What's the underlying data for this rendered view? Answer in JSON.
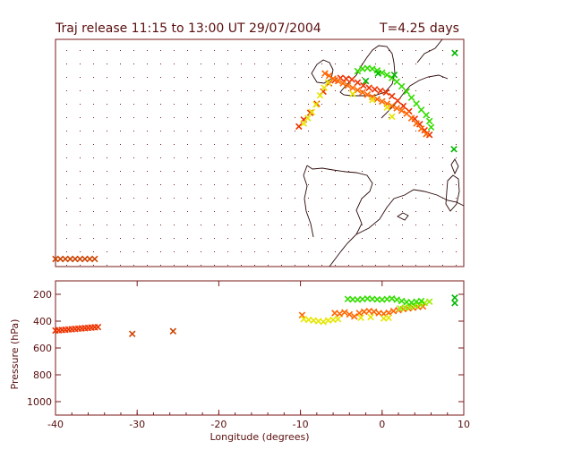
{
  "title": "Traj release 11:15 to 13:00 UT 29/07/2004",
  "duration_label": "T=4.25 days",
  "colors": {
    "frame": "#7a1a1a",
    "coast": "#2a0606",
    "grid": "#7a1a1a",
    "text": "#5a0e0e",
    "marker_palette": [
      "#00b800",
      "#33dd00",
      "#99ee00",
      "#e6e600",
      "#ff9900",
      "#ff6600",
      "#ee3300",
      "#cc4400"
    ]
  },
  "chart_data": [
    {
      "type": "scatter",
      "panel": "map",
      "title": "Traj release 11:15 to 13:00 UT 29/07/2004",
      "xlim": [
        -40,
        10
      ],
      "ylim": [
        30,
        60
      ],
      "grid": true,
      "series": [
        {
          "color": "#cc4400",
          "x": [
            -40,
            -39.4,
            -38.8,
            -38.2,
            -37.6,
            -37,
            -36.4,
            -35.8,
            -35.2
          ],
          "y": [
            31,
            31,
            31,
            31,
            31,
            31,
            31,
            31,
            31
          ]
        },
        {
          "color": "#ee3300",
          "x": [
            -10.2,
            -9.6,
            -8.8,
            -8,
            -7.2,
            -6.5,
            -5.8,
            -5.1,
            -4.4,
            -3.7,
            -3,
            -2.3,
            -1.6,
            -0.9,
            -0.2,
            0.5,
            1.2,
            1.9,
            2.6,
            3.3,
            4,
            4.6,
            5.2,
            5.8
          ],
          "y": [
            48.5,
            49.4,
            50.3,
            51.5,
            53.1,
            54.2,
            54.6,
            54.9,
            54.8,
            54.7,
            54.3,
            53.9,
            53.6,
            53.4,
            53.2,
            53.0,
            52.5,
            51.9,
            51.2,
            50.5,
            49.5,
            48.8,
            48.0,
            47.4
          ]
        },
        {
          "color": "#ff6600",
          "x": [
            -7,
            -6.5,
            -6,
            -5.4,
            -4.8,
            -4.2,
            -3.6,
            -3,
            -2.4,
            -1.8,
            -1.2,
            -0.6,
            0,
            0.6,
            1.2,
            1.8,
            2.4,
            3,
            3.6,
            4.2,
            4.8,
            5.4
          ],
          "y": [
            55.5,
            55.2,
            54.8,
            54.5,
            54.2,
            53.9,
            53.6,
            53.3,
            53.0,
            52.7,
            52.4,
            52.1,
            51.8,
            51.5,
            51.2,
            50.9,
            50.6,
            50.2,
            49.6,
            48.9,
            48.2,
            47.5
          ]
        },
        {
          "color": "#e6e600",
          "x": [
            -9.6,
            -9.1,
            -8.6,
            -8.1,
            -7.6,
            -7.1,
            -6.6,
            -3.6,
            -1.2,
            0.6,
            1.2
          ],
          "y": [
            48.9,
            49.6,
            50.4,
            51.4,
            52.6,
            53.6,
            54.3,
            52.8,
            52.0,
            51.0,
            49.8
          ]
        },
        {
          "color": "#33dd00",
          "x": [
            -3,
            -2.4,
            -1.8,
            -1.2,
            -0.6,
            0,
            0.6,
            1.2,
            1.8,
            2.4,
            3,
            3.6,
            4.2,
            4.8,
            5.4,
            5.8,
            6
          ],
          "y": [
            55.8,
            56.1,
            56.2,
            56.1,
            55.9,
            55.6,
            55.3,
            54.9,
            54.4,
            53.8,
            53.1,
            52.3,
            51.5,
            50.7,
            50.0,
            49.2,
            48.4
          ]
        },
        {
          "color": "#00b800",
          "x": [
            8.9,
            8.8,
            1.5,
            -0.5,
            -2
          ],
          "y": [
            58.2,
            45.5,
            55.3,
            55.5,
            54.5
          ]
        }
      ]
    },
    {
      "type": "scatter",
      "panel": "pressure",
      "xlabel": "Longitude  (degrees)",
      "ylabel": "Pressure  (hPa)",
      "xlim": [
        -40,
        10
      ],
      "ylim": [
        1100,
        100
      ],
      "xticks": [
        -40,
        -30,
        -20,
        -10,
        0,
        10
      ],
      "yticks": [
        200,
        400,
        600,
        800,
        1000
      ],
      "series": [
        {
          "color": "#ee3300",
          "x": [
            -40,
            -39.6,
            -39.2,
            -38.8,
            -38.4,
            -38,
            -37.6,
            -37.2,
            -36.8,
            -36.4,
            -36,
            -35.6,
            -35.2,
            -34.8
          ],
          "y": [
            470,
            468,
            466,
            464,
            462,
            460,
            458,
            456,
            454,
            452,
            450,
            448,
            446,
            444
          ]
        },
        {
          "color": "#cc4400",
          "x": [
            -30.6,
            -25.6
          ],
          "y": [
            495,
            475
          ]
        },
        {
          "color": "#ff6600",
          "x": [
            -9.8,
            -5.8,
            -5.2,
            -4.6,
            -4,
            -3.4,
            -2.8,
            -2.2,
            -1.6,
            -1,
            -0.4,
            0.2,
            0.8,
            1.4,
            2,
            2.6,
            3.2,
            3.8,
            4.4,
            5
          ],
          "y": [
            355,
            340,
            345,
            335,
            350,
            365,
            340,
            330,
            325,
            330,
            340,
            345,
            338,
            325,
            318,
            310,
            305,
            300,
            295,
            290
          ]
        },
        {
          "color": "#e6e600",
          "x": [
            -9.6,
            -9,
            -8.4,
            -7.8,
            -7.2,
            -6.6,
            -6,
            -5.4,
            -2.6,
            -1.4,
            0.2,
            0.8
          ],
          "y": [
            385,
            390,
            395,
            400,
            405,
            395,
            390,
            385,
            375,
            370,
            380,
            375
          ]
        },
        {
          "color": "#99ee00",
          "x": [
            2.2,
            2.8,
            3.4,
            4,
            4.6,
            5.2,
            5.8
          ],
          "y": [
            305,
            300,
            295,
            285,
            275,
            265,
            255
          ]
        },
        {
          "color": "#33dd00",
          "x": [
            -4.2,
            -3.6,
            -3,
            -2.4,
            -1.8,
            -1.2,
            -0.6,
            0,
            0.6,
            1.2,
            1.8,
            2.4,
            3,
            3.6,
            4.2,
            4.8
          ],
          "y": [
            235,
            238,
            240,
            236,
            232,
            235,
            238,
            240,
            236,
            232,
            240,
            250,
            258,
            262,
            255,
            250
          ]
        },
        {
          "color": "#00b800",
          "x": [
            8.9,
            8.9
          ],
          "y": [
            225,
            265
          ]
        }
      ]
    }
  ]
}
